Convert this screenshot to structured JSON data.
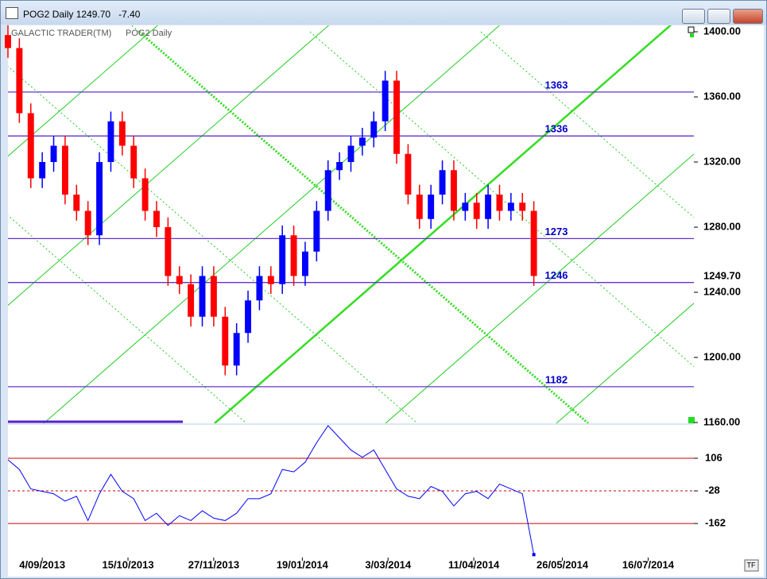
{
  "window": {
    "symbol": "POG2",
    "period": "Daily",
    "last": {
      "value": 1249.7,
      "label": "1249.70"
    },
    "change": {
      "value": -7.4,
      "label": "-7.40"
    },
    "tf": "TF"
  },
  "chart_data": [
    {
      "type": "candlestick",
      "title": "GALACTIC TRADER(TM)",
      "x": [
        0,
        4,
        8,
        12,
        16,
        20,
        24,
        28,
        32,
        36,
        40,
        44,
        48,
        52,
        56,
        60,
        64,
        68,
        72,
        76,
        80,
        84,
        88,
        92,
        96,
        100,
        104,
        108,
        112,
        116,
        120,
        124,
        128,
        132,
        136,
        140,
        144,
        148,
        152,
        156,
        160,
        164,
        168,
        172,
        176,
        180,
        184
      ],
      "open": [
        1398,
        1390,
        1350,
        1310,
        1320,
        1330,
        1300,
        1290,
        1275,
        1320,
        1345,
        1330,
        1310,
        1290,
        1280,
        1250,
        1245,
        1225,
        1250,
        1225,
        1195,
        1215,
        1235,
        1250,
        1245,
        1275,
        1250,
        1265,
        1290,
        1315,
        1320,
        1330,
        1335,
        1345,
        1370,
        1325,
        1300,
        1285,
        1300,
        1315,
        1290,
        1295,
        1285,
        1300,
        1290,
        1295,
        1290
      ],
      "high": [
        1404,
        1396,
        1356,
        1326,
        1336,
        1336,
        1306,
        1296,
        1326,
        1351,
        1351,
        1336,
        1316,
        1296,
        1286,
        1256,
        1251,
        1256,
        1256,
        1231,
        1221,
        1241,
        1256,
        1256,
        1281,
        1281,
        1271,
        1296,
        1321,
        1326,
        1336,
        1341,
        1351,
        1376,
        1376,
        1331,
        1306,
        1306,
        1321,
        1321,
        1301,
        1301,
        1306,
        1306,
        1301,
        1301,
        1296
      ],
      "low": [
        1384,
        1344,
        1304,
        1304,
        1314,
        1294,
        1284,
        1269,
        1269,
        1314,
        1324,
        1304,
        1284,
        1274,
        1244,
        1239,
        1219,
        1219,
        1219,
        1189,
        1189,
        1209,
        1229,
        1239,
        1239,
        1244,
        1244,
        1259,
        1284,
        1309,
        1314,
        1324,
        1329,
        1339,
        1319,
        1294,
        1279,
        1279,
        1294,
        1284,
        1284,
        1279,
        1279,
        1284,
        1284,
        1284,
        1244
      ],
      "close": [
        1390,
        1350,
        1310,
        1320,
        1330,
        1300,
        1290,
        1275,
        1320,
        1345,
        1330,
        1310,
        1290,
        1280,
        1250,
        1245,
        1225,
        1250,
        1225,
        1195,
        1215,
        1235,
        1250,
        1245,
        1275,
        1250,
        1265,
        1290,
        1315,
        1320,
        1330,
        1335,
        1345,
        1370,
        1325,
        1300,
        1285,
        1300,
        1315,
        1290,
        1295,
        1285,
        1300,
        1290,
        1295,
        1290,
        1250
      ],
      "up_color": "#0000ff",
      "down_color": "#ff0000",
      "levels": [
        1363,
        1336,
        1273,
        1246,
        1182
      ],
      "level_color": "#6633cc",
      "level_label_color": "#0000cc",
      "xlim": [
        0,
        240
      ],
      "ylim": [
        1160,
        1400
      ],
      "yticks": [
        {
          "value": 1160,
          "label": "1160.00"
        },
        {
          "value": 1200,
          "label": "1200.00"
        },
        {
          "value": 1240,
          "label": "1240.00"
        },
        {
          "value": 1280,
          "label": "1280.00"
        },
        {
          "value": 1320,
          "label": "1320.00"
        },
        {
          "value": 1360,
          "label": "1360.00"
        },
        {
          "value": 1400,
          "label": "1400.00"
        }
      ]
    },
    {
      "type": "line",
      "x": [
        0,
        4,
        8,
        12,
        16,
        20,
        24,
        28,
        32,
        36,
        40,
        44,
        48,
        52,
        56,
        60,
        64,
        68,
        72,
        76,
        80,
        84,
        88,
        92,
        96,
        100,
        104,
        108,
        112,
        116,
        120,
        124,
        128,
        132,
        136,
        140,
        144,
        148,
        152,
        156,
        160,
        164,
        168,
        172,
        176,
        180,
        184
      ],
      "values": [
        100,
        60,
        -20,
        -30,
        -40,
        -70,
        -50,
        -150,
        -40,
        40,
        -30,
        -60,
        -150,
        -120,
        -170,
        -130,
        -150,
        -110,
        -140,
        -150,
        -120,
        -60,
        -60,
        -40,
        60,
        50,
        90,
        170,
        240,
        190,
        140,
        110,
        140,
        60,
        -20,
        -50,
        -60,
        -10,
        -30,
        -90,
        -40,
        -30,
        -60,
        0,
        -20,
        -40,
        -290
      ],
      "color": "#0000ff",
      "ref_color": "#cc0000",
      "xlim": [
        0,
        240
      ],
      "ylim": [
        -302,
        243
      ],
      "yticks": [
        106,
        -28,
        -162
      ],
      "xticks": [
        {
          "value": 12,
          "label": "4/09/2013"
        },
        {
          "value": 42,
          "label": "15/10/2013"
        },
        {
          "value": 72,
          "label": "27/11/2013"
        },
        {
          "value": 103,
          "label": "19/01/2014"
        },
        {
          "value": 133,
          "label": "3/03/2014"
        },
        {
          "value": 163,
          "label": "11/04/2014"
        },
        {
          "value": 194,
          "label": "26/05/2014"
        },
        {
          "value": 224,
          "label": "16/07/2014"
        }
      ]
    }
  ]
}
